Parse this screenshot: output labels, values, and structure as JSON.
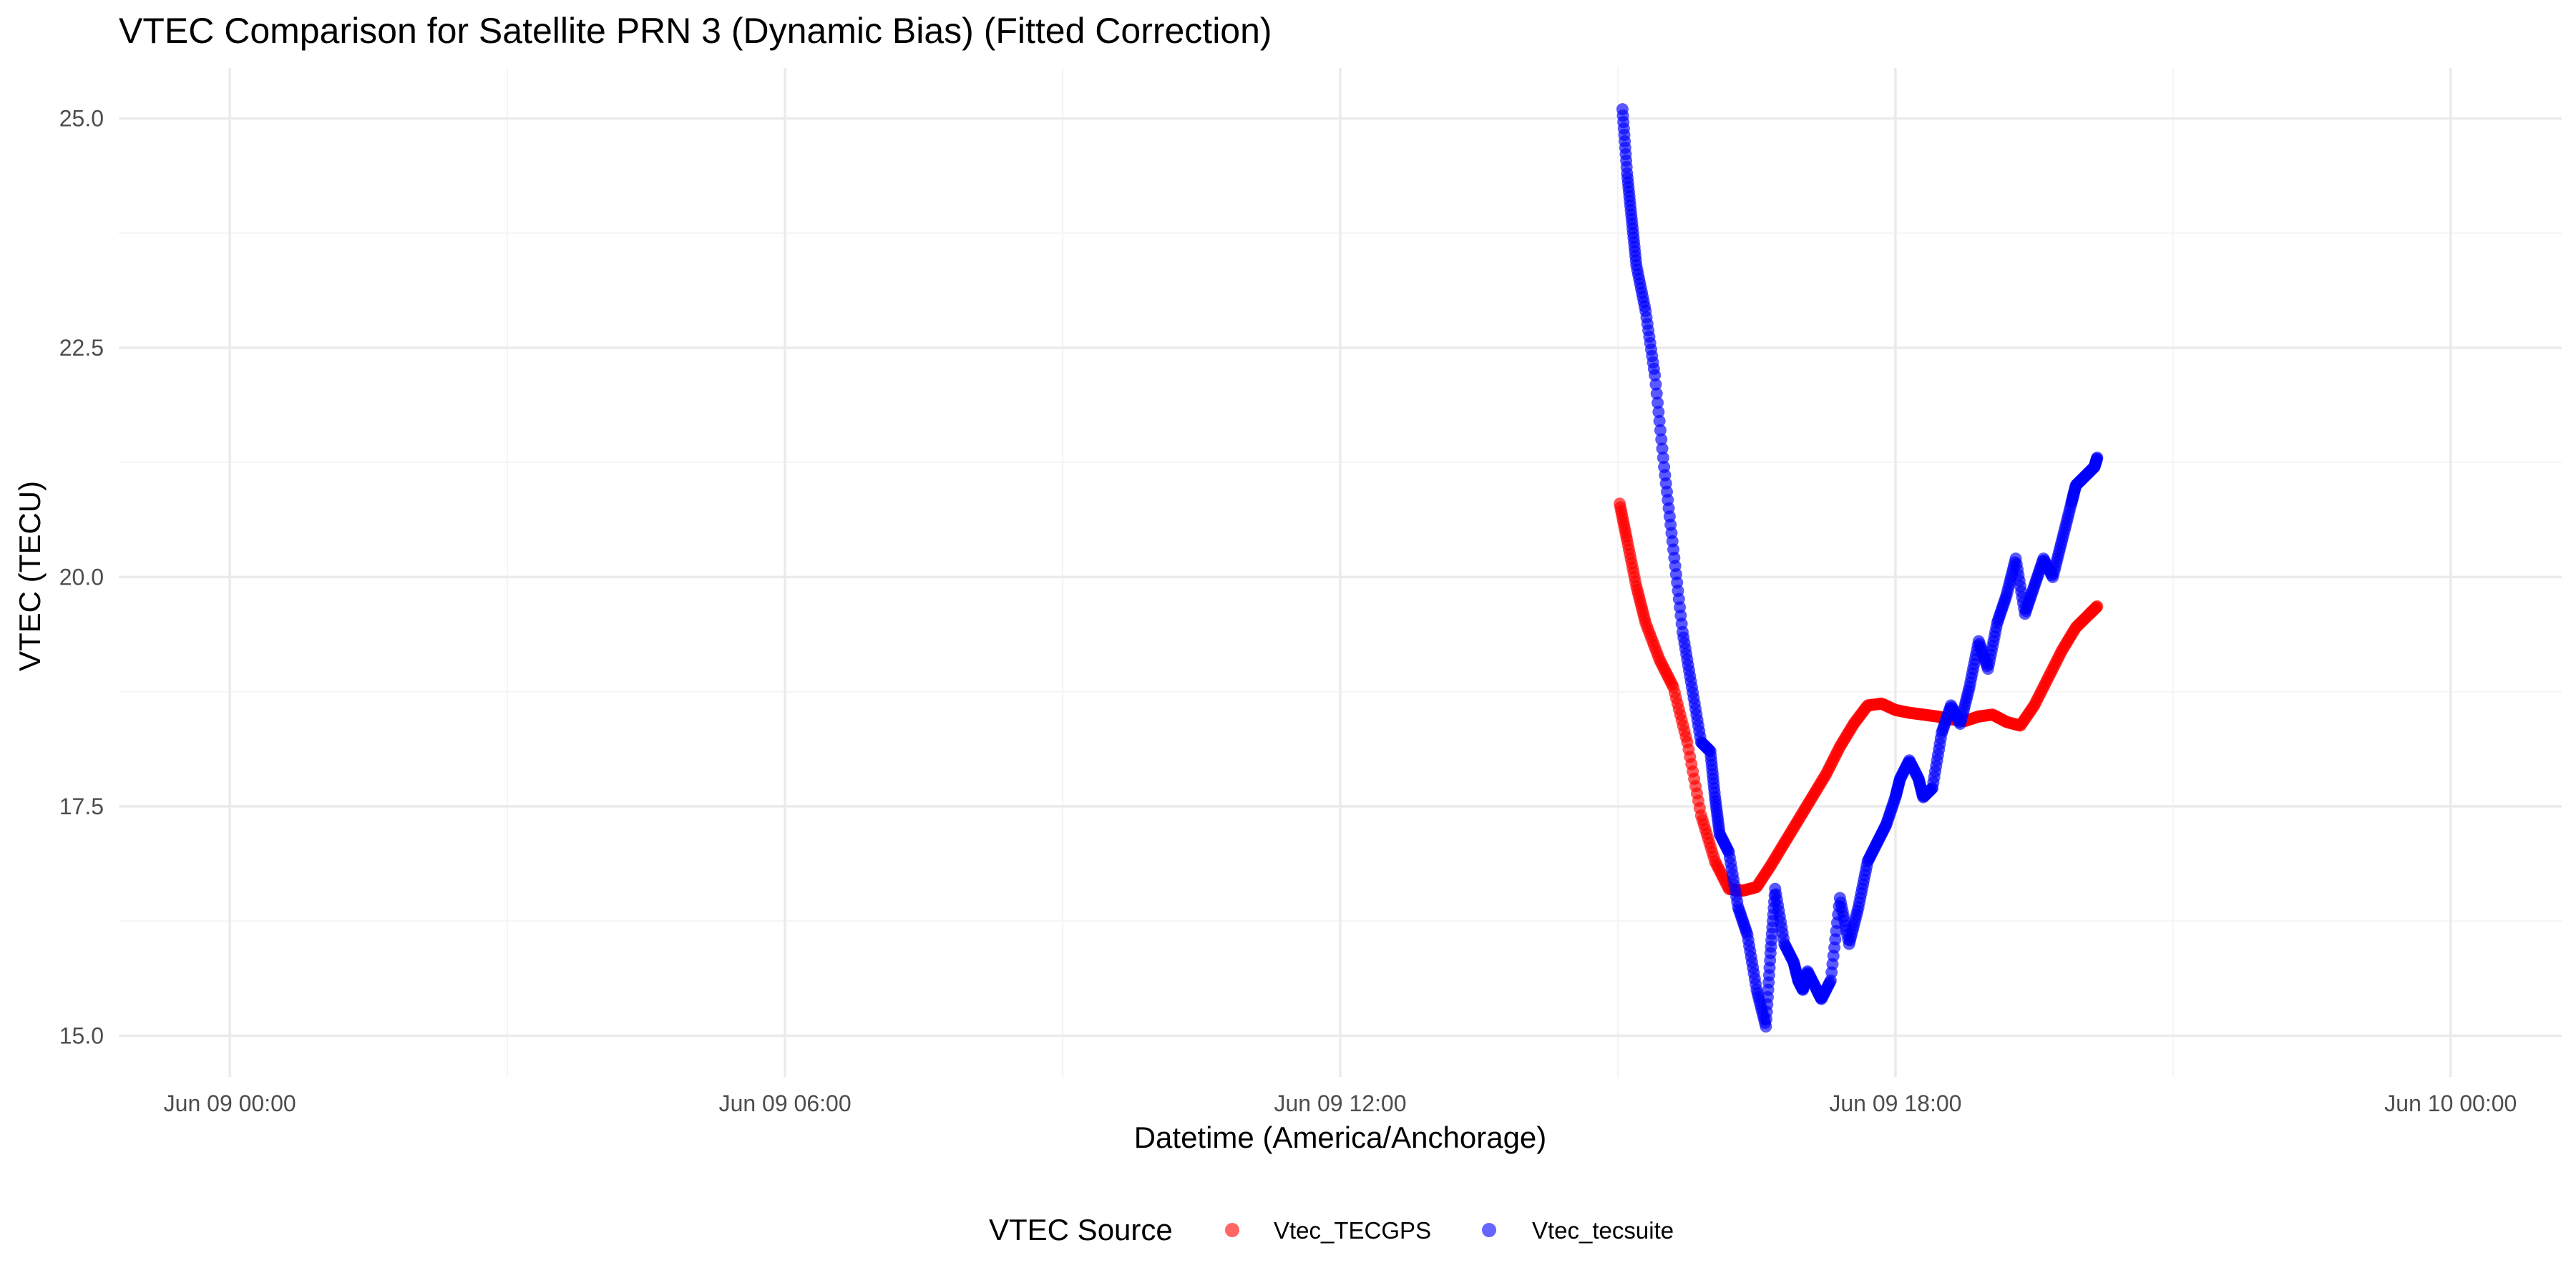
{
  "chart_data": {
    "type": "scatter",
    "title": "VTEC Comparison for Satellite PRN 3 (Dynamic Bias)   (Fitted Correction)",
    "xlabel": "Datetime (America/Anchorage)",
    "ylabel": "VTEC (TECU)",
    "x_ticks": [
      "Jun 09 00:00",
      "Jun 09 06:00",
      "Jun 09 12:00",
      "Jun 09 18:00",
      "Jun 10 00:00"
    ],
    "x_tick_hours": [
      0,
      6,
      12,
      18,
      24
    ],
    "xlim_hours_from_jun09_0000": [
      -1.2,
      25.2
    ],
    "y_ticks": [
      "15.0",
      "17.5",
      "20.0",
      "22.5",
      "25.0"
    ],
    "ylim": [
      14.55,
      25.55
    ],
    "grid": true,
    "legend": {
      "title": "VTEC Source",
      "placement": "bottom"
    },
    "series": [
      {
        "name": "Vtec_TECGPS",
        "color": "#ff0000",
        "x_hours": [
          15.02,
          15.1,
          15.2,
          15.3,
          15.45,
          15.6,
          15.75,
          15.9,
          16.05,
          16.2,
          16.35,
          16.5,
          16.65,
          16.8,
          16.95,
          17.1,
          17.25,
          17.4,
          17.55,
          17.7,
          17.85,
          18.0,
          18.15,
          18.3,
          18.45,
          18.6,
          18.75,
          18.9,
          19.05,
          19.2,
          19.35,
          19.5,
          19.65,
          19.8,
          19.95,
          20.1,
          20.18
        ],
        "y": [
          20.8,
          20.4,
          19.9,
          19.5,
          19.1,
          18.8,
          18.2,
          17.4,
          16.9,
          16.6,
          16.58,
          16.62,
          16.85,
          17.1,
          17.35,
          17.6,
          17.85,
          18.15,
          18.4,
          18.6,
          18.62,
          18.55,
          18.52,
          18.5,
          18.48,
          18.45,
          18.43,
          18.48,
          18.5,
          18.42,
          18.38,
          18.6,
          18.9,
          19.2,
          19.45,
          19.6,
          19.68
        ]
      },
      {
        "name": "Vtec_tecsuite",
        "color": "#0000ff",
        "x_hours": [
          15.05,
          15.1,
          15.15,
          15.2,
          15.3,
          15.4,
          15.5,
          15.6,
          15.7,
          15.8,
          15.9,
          16.0,
          16.05,
          16.1,
          16.2,
          16.3,
          16.4,
          16.5,
          16.6,
          16.65,
          16.7,
          16.8,
          16.9,
          16.95,
          17.0,
          17.05,
          17.15,
          17.2,
          17.3,
          17.4,
          17.5,
          17.6,
          17.7,
          17.8,
          17.9,
          18.0,
          18.05,
          18.15,
          18.25,
          18.3,
          18.4,
          18.5,
          18.6,
          18.7,
          18.8,
          18.9,
          19.0,
          19.1,
          19.2,
          19.3,
          19.4,
          19.5,
          19.6,
          19.7,
          19.8,
          19.9,
          19.95,
          20.05,
          20.15,
          20.18
        ],
        "y": [
          25.1,
          24.4,
          23.9,
          23.4,
          22.9,
          22.2,
          21.2,
          20.3,
          19.4,
          18.8,
          18.2,
          18.1,
          17.6,
          17.2,
          17.0,
          16.4,
          16.1,
          15.5,
          15.1,
          15.9,
          16.6,
          16.0,
          15.8,
          15.6,
          15.5,
          15.7,
          15.5,
          15.4,
          15.6,
          16.5,
          16.0,
          16.4,
          16.9,
          17.1,
          17.3,
          17.6,
          17.8,
          18.0,
          17.8,
          17.6,
          17.7,
          18.3,
          18.6,
          18.4,
          18.8,
          19.3,
          19.0,
          19.5,
          19.8,
          20.2,
          19.6,
          19.9,
          20.2,
          20.0,
          20.4,
          20.8,
          21.0,
          21.1,
          21.2,
          21.3
        ]
      }
    ]
  }
}
